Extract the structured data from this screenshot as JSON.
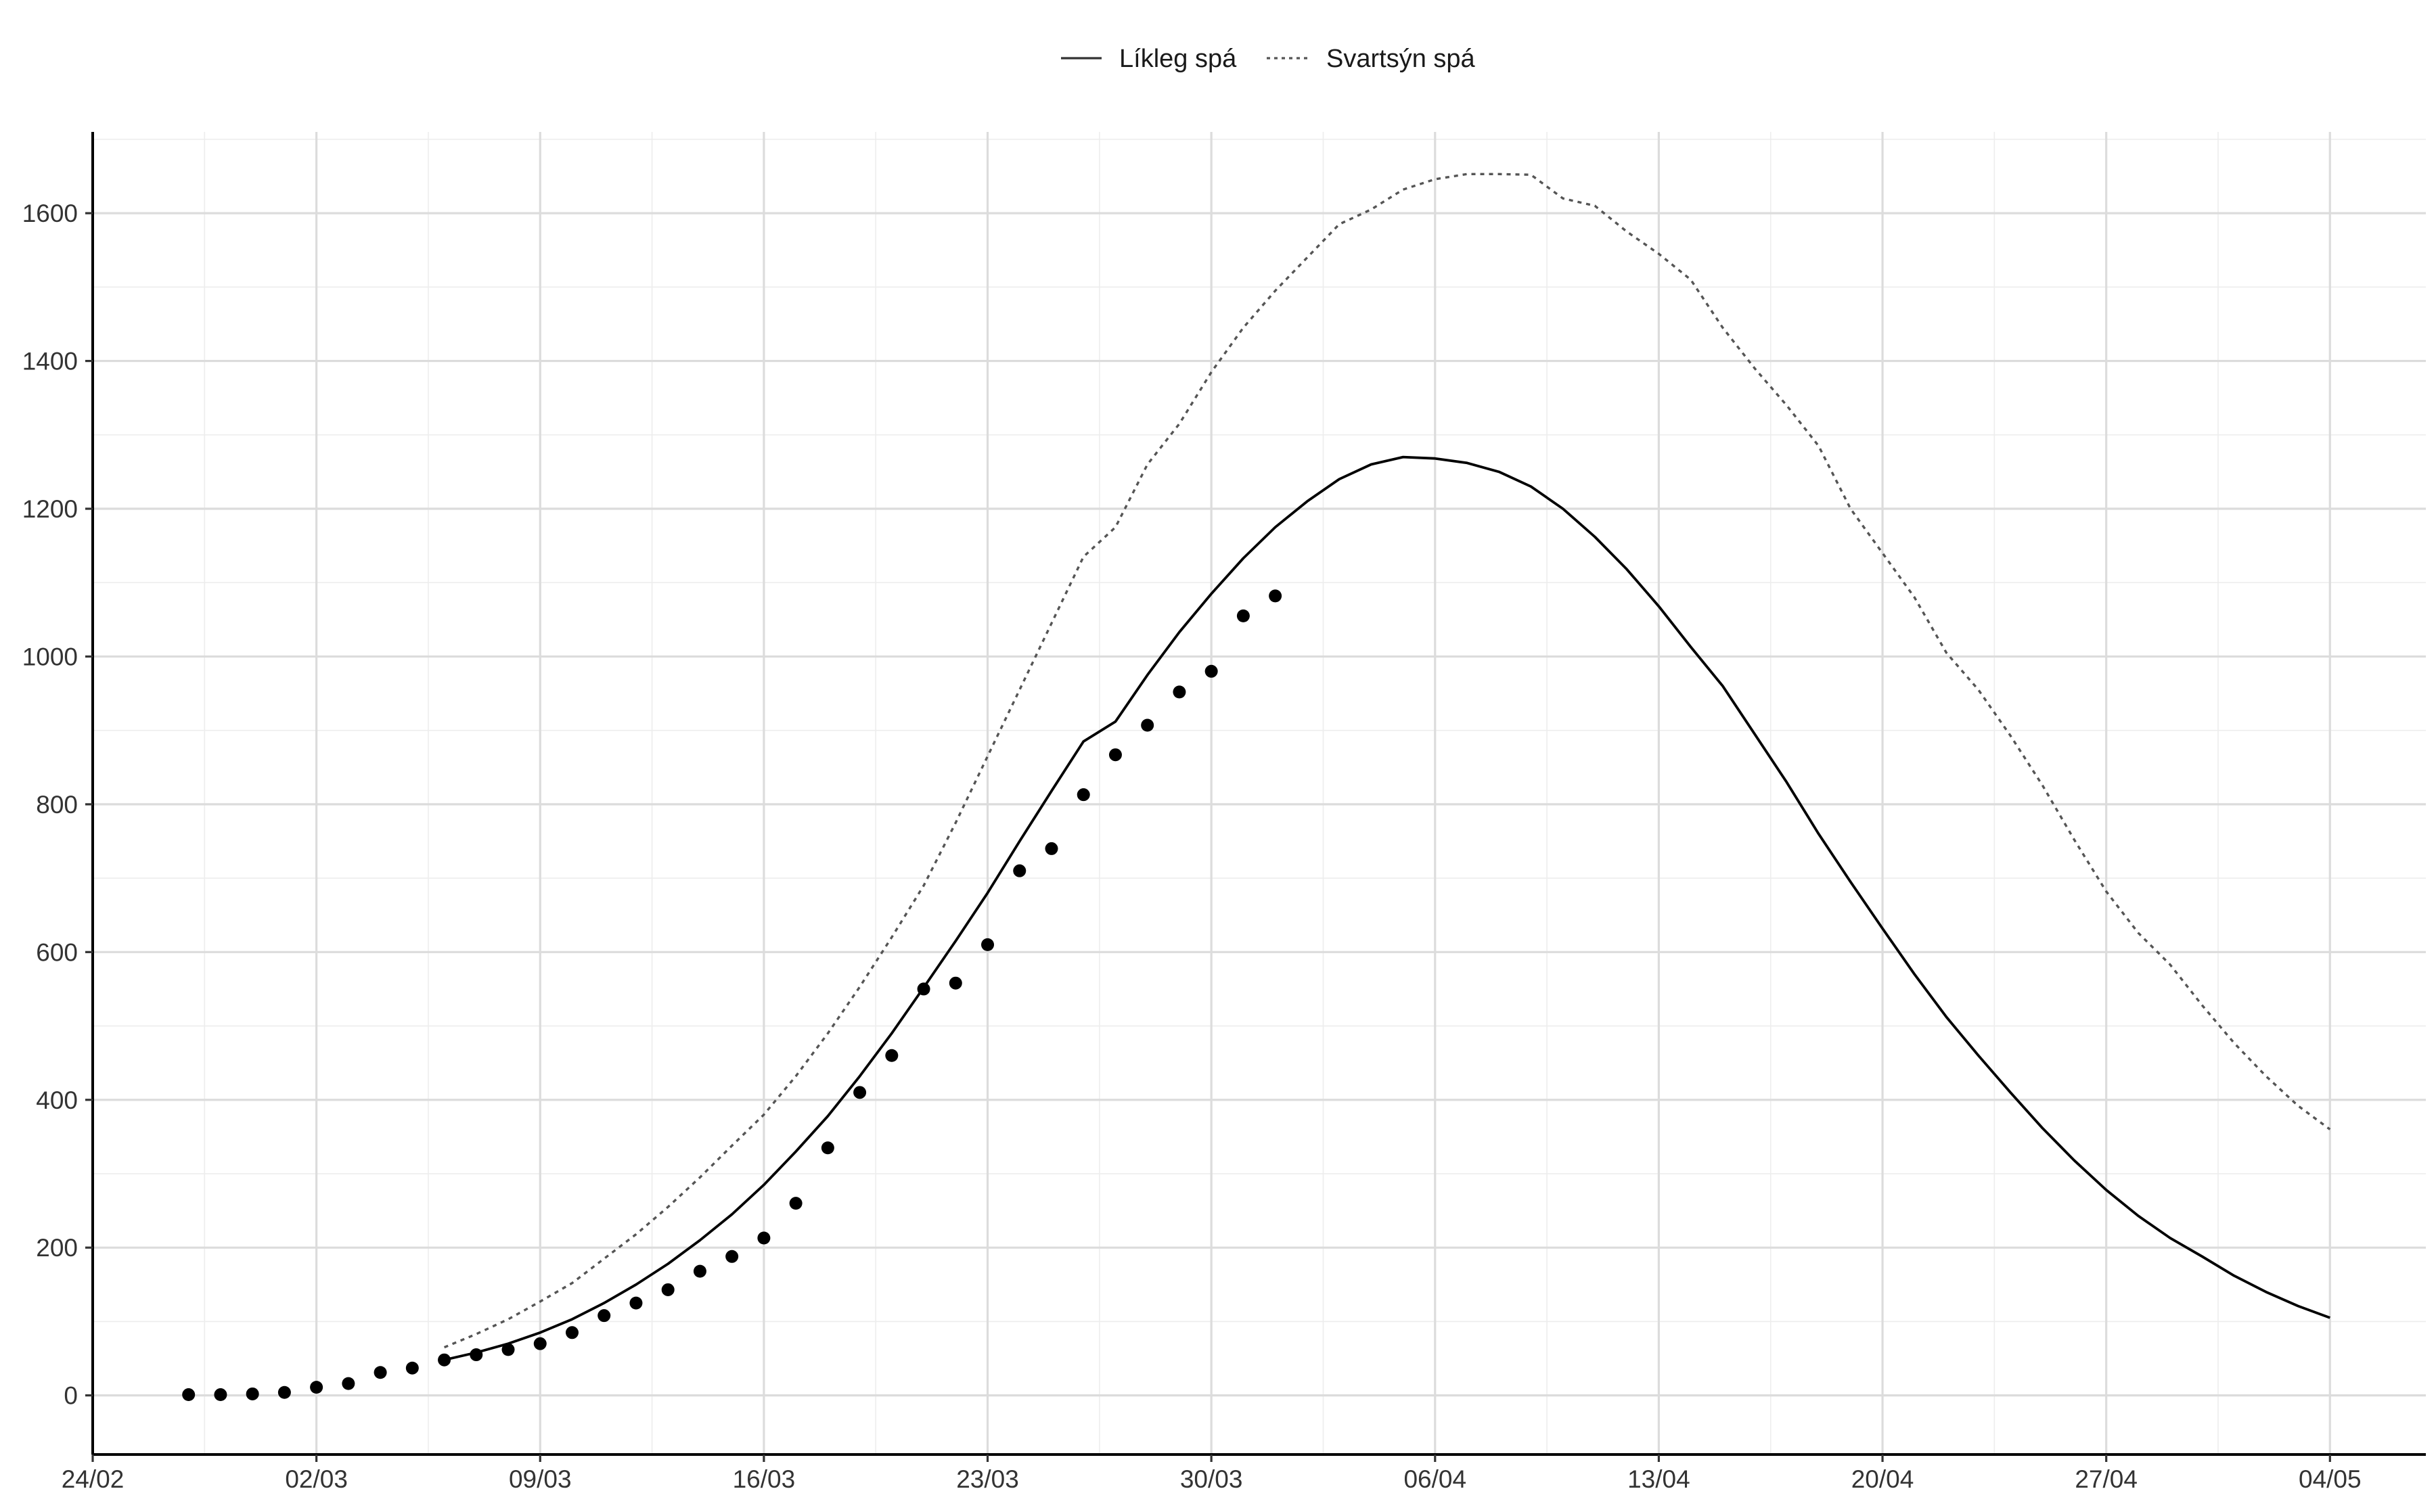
{
  "chart_data": {
    "type": "line",
    "title": "",
    "xlabel": "",
    "ylabel": "",
    "x_axis": {
      "type": "date",
      "range": [
        "2020-02-24",
        "2020-05-07"
      ],
      "major_ticks": [
        "2020-02-24",
        "2020-03-02",
        "2020-03-09",
        "2020-03-16",
        "2020-03-23",
        "2020-03-30",
        "2020-04-06",
        "2020-04-13",
        "2020-04-20",
        "2020-04-27",
        "2020-05-04"
      ],
      "tick_labels": [
        "24/02",
        "02/03",
        "09/03",
        "16/03",
        "23/03",
        "30/03",
        "06/04",
        "13/04",
        "20/04",
        "27/04",
        "04/05"
      ]
    },
    "y_axis": {
      "range": [
        -80,
        1710
      ],
      "ticks": [
        0,
        200,
        400,
        600,
        800,
        1000,
        1200,
        1400,
        1600
      ],
      "tick_labels": [
        "0",
        "200",
        "400",
        "600",
        "800",
        "1000",
        "1200",
        "1400",
        "1600"
      ]
    },
    "grid": true,
    "legend": {
      "position": "top",
      "entries": [
        {
          "label": "Líkleg spá",
          "style": "solid",
          "color": "#000000"
        },
        {
          "label": "Svartsýn spá",
          "style": "dotted",
          "color": "#555555"
        }
      ]
    },
    "series": [
      {
        "name": "Líkleg spá",
        "style": "solid",
        "color": "#000000",
        "points": [
          [
            "2020-03-06",
            48
          ],
          [
            "2020-03-07",
            58
          ],
          [
            "2020-03-08",
            70
          ],
          [
            "2020-03-09",
            85
          ],
          [
            "2020-03-10",
            103
          ],
          [
            "2020-03-11",
            125
          ],
          [
            "2020-03-12",
            150
          ],
          [
            "2020-03-13",
            178
          ],
          [
            "2020-03-14",
            210
          ],
          [
            "2020-03-15",
            245
          ],
          [
            "2020-03-16",
            285
          ],
          [
            "2020-03-17",
            330
          ],
          [
            "2020-03-18",
            378
          ],
          [
            "2020-03-19",
            432
          ],
          [
            "2020-03-20",
            490
          ],
          [
            "2020-03-21",
            552
          ],
          [
            "2020-03-22",
            615
          ],
          [
            "2020-03-23",
            680
          ],
          [
            "2020-03-24",
            750
          ],
          [
            "2020-03-25",
            818
          ],
          [
            "2020-03-26",
            885
          ],
          [
            "2020-03-27",
            912
          ],
          [
            "2020-03-28",
            975
          ],
          [
            "2020-03-29",
            1033
          ],
          [
            "2020-03-30",
            1085
          ],
          [
            "2020-03-31",
            1133
          ],
          [
            "2020-04-01",
            1175
          ],
          [
            "2020-04-02",
            1210
          ],
          [
            "2020-04-03",
            1240
          ],
          [
            "2020-04-04",
            1260
          ],
          [
            "2020-04-05",
            1270
          ],
          [
            "2020-04-06",
            1268
          ],
          [
            "2020-04-07",
            1262
          ],
          [
            "2020-04-08",
            1250
          ],
          [
            "2020-04-09",
            1230
          ],
          [
            "2020-04-10",
            1200
          ],
          [
            "2020-04-11",
            1162
          ],
          [
            "2020-04-12",
            1118
          ],
          [
            "2020-04-13",
            1068
          ],
          [
            "2020-04-14",
            1013
          ],
          [
            "2020-04-15",
            960
          ],
          [
            "2020-04-16",
            895
          ],
          [
            "2020-04-17",
            830
          ],
          [
            "2020-04-18",
            760
          ],
          [
            "2020-04-19",
            695
          ],
          [
            "2020-04-20",
            632
          ],
          [
            "2020-04-21",
            570
          ],
          [
            "2020-04-22",
            512
          ],
          [
            "2020-04-23",
            460
          ],
          [
            "2020-04-24",
            410
          ],
          [
            "2020-04-25",
            362
          ],
          [
            "2020-04-26",
            318
          ],
          [
            "2020-04-27",
            278
          ],
          [
            "2020-04-28",
            243
          ],
          [
            "2020-04-29",
            213
          ],
          [
            "2020-04-30",
            188
          ],
          [
            "2020-05-01",
            162
          ],
          [
            "2020-05-02",
            140
          ],
          [
            "2020-05-03",
            121
          ],
          [
            "2020-05-04",
            105
          ]
        ]
      },
      {
        "name": "Svartsýn spá",
        "style": "dotted",
        "color": "#555555",
        "points": [
          [
            "2020-03-06",
            65
          ],
          [
            "2020-03-07",
            83
          ],
          [
            "2020-03-08",
            103
          ],
          [
            "2020-03-09",
            127
          ],
          [
            "2020-03-10",
            152
          ],
          [
            "2020-03-11",
            185
          ],
          [
            "2020-03-12",
            218
          ],
          [
            "2020-03-13",
            255
          ],
          [
            "2020-03-14",
            295
          ],
          [
            "2020-03-15",
            338
          ],
          [
            "2020-03-16",
            380
          ],
          [
            "2020-03-17",
            432
          ],
          [
            "2020-03-18",
            490
          ],
          [
            "2020-03-19",
            553
          ],
          [
            "2020-03-20",
            620
          ],
          [
            "2020-03-21",
            690
          ],
          [
            "2020-03-22",
            775
          ],
          [
            "2020-03-23",
            865
          ],
          [
            "2020-03-24",
            955
          ],
          [
            "2020-03-25",
            1045
          ],
          [
            "2020-03-26",
            1135
          ],
          [
            "2020-03-27",
            1175
          ],
          [
            "2020-03-28",
            1260
          ],
          [
            "2020-03-29",
            1315
          ],
          [
            "2020-03-30",
            1385
          ],
          [
            "2020-03-31",
            1445
          ],
          [
            "2020-04-01",
            1495
          ],
          [
            "2020-04-02",
            1540
          ],
          [
            "2020-04-03",
            1585
          ],
          [
            "2020-04-04",
            1605
          ],
          [
            "2020-04-05",
            1632
          ],
          [
            "2020-04-06",
            1646
          ],
          [
            "2020-04-07",
            1653
          ],
          [
            "2020-04-08",
            1653
          ],
          [
            "2020-04-09",
            1652
          ],
          [
            "2020-04-10",
            1620
          ],
          [
            "2020-04-11",
            1610
          ],
          [
            "2020-04-12",
            1575
          ],
          [
            "2020-04-13",
            1545
          ],
          [
            "2020-04-14",
            1510
          ],
          [
            "2020-04-15",
            1445
          ],
          [
            "2020-04-16",
            1390
          ],
          [
            "2020-04-17",
            1340
          ],
          [
            "2020-04-18",
            1285
          ],
          [
            "2020-04-19",
            1200
          ],
          [
            "2020-04-20",
            1140
          ],
          [
            "2020-04-21",
            1080
          ],
          [
            "2020-04-22",
            1005
          ],
          [
            "2020-04-23",
            955
          ],
          [
            "2020-04-24",
            893
          ],
          [
            "2020-04-25",
            826
          ],
          [
            "2020-04-26",
            752
          ],
          [
            "2020-04-27",
            682
          ],
          [
            "2020-04-28",
            626
          ],
          [
            "2020-04-29",
            583
          ],
          [
            "2020-04-30",
            528
          ],
          [
            "2020-05-01",
            477
          ],
          [
            "2020-05-02",
            432
          ],
          [
            "2020-05-03",
            392
          ],
          [
            "2020-05-04",
            360
          ]
        ]
      },
      {
        "name": "",
        "style": "points",
        "color": "#000000",
        "points": [
          [
            "2020-02-27",
            1
          ],
          [
            "2020-02-28",
            1
          ],
          [
            "2020-02-29",
            2
          ],
          [
            "2020-03-01",
            4
          ],
          [
            "2020-03-02",
            11
          ],
          [
            "2020-03-03",
            16
          ],
          [
            "2020-03-04",
            31
          ],
          [
            "2020-03-05",
            37
          ],
          [
            "2020-03-06",
            48
          ],
          [
            "2020-03-07",
            55
          ],
          [
            "2020-03-08",
            62
          ],
          [
            "2020-03-09",
            70
          ],
          [
            "2020-03-10",
            85
          ],
          [
            "2020-03-11",
            108
          ],
          [
            "2020-03-12",
            125
          ],
          [
            "2020-03-13",
            143
          ],
          [
            "2020-03-14",
            168
          ],
          [
            "2020-03-15",
            188
          ],
          [
            "2020-03-16",
            213
          ],
          [
            "2020-03-17",
            260
          ],
          [
            "2020-03-18",
            335
          ],
          [
            "2020-03-19",
            410
          ],
          [
            "2020-03-20",
            460
          ],
          [
            "2020-03-21",
            550
          ],
          [
            "2020-03-22",
            558
          ],
          [
            "2020-03-23",
            610
          ],
          [
            "2020-03-24",
            710
          ],
          [
            "2020-03-25",
            740
          ],
          [
            "2020-03-26",
            813
          ],
          [
            "2020-03-27",
            867
          ],
          [
            "2020-03-28",
            907
          ],
          [
            "2020-03-29",
            952
          ],
          [
            "2020-03-30",
            980
          ],
          [
            "2020-03-31",
            1055
          ],
          [
            "2020-04-01",
            1082
          ]
        ]
      }
    ]
  }
}
